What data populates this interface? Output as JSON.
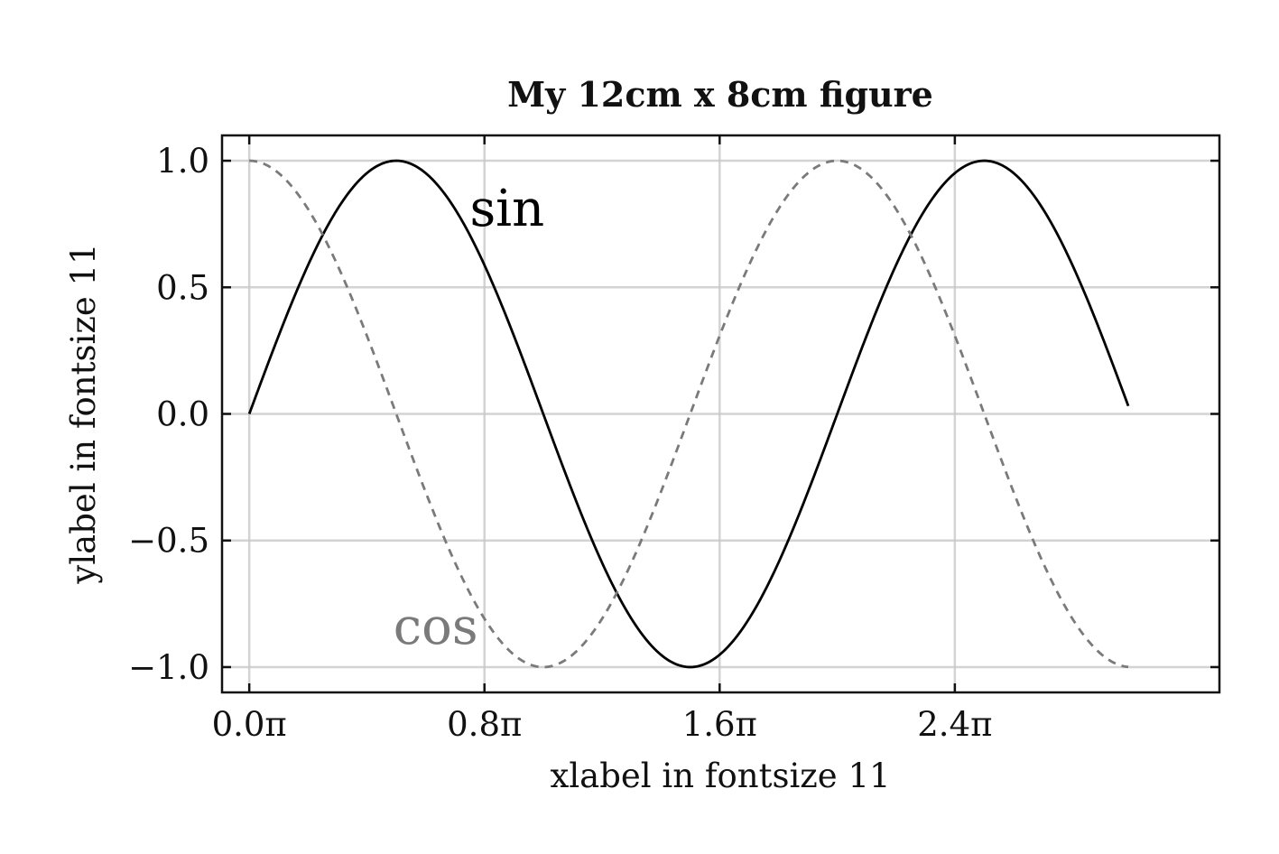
{
  "chart_data": {
    "type": "line",
    "title": "My 12cm x 8cm figure",
    "xlabel": "xlabel in fontsize 11",
    "ylabel": "ylabel in fontsize 11",
    "xlim": [
      -0.0926,
      3.3
    ],
    "ylim": [
      -1.1,
      1.1
    ],
    "x_unit": "π",
    "x_ticks": [
      0.0,
      0.8,
      1.6,
      2.4
    ],
    "x_tick_labels": [
      "0.0π",
      "0.8π",
      "1.6π",
      "2.4π"
    ],
    "y_ticks": [
      1.0,
      0.5,
      0.0,
      -0.5,
      -1.0
    ],
    "y_tick_labels": [
      "1.0",
      "0.5",
      "0.0",
      "−0.5",
      "−1.0"
    ],
    "grid": true,
    "x_range": [
      0,
      2.99
    ],
    "series": [
      {
        "name": "sin",
        "function": "sin",
        "color": "#000000",
        "linestyle": "solid"
      },
      {
        "name": "cos",
        "function": "cos",
        "color": "#7a7a7a",
        "linestyle": "dashed"
      }
    ],
    "annotations": [
      {
        "text": "sin",
        "x": 0.75,
        "y": 0.8,
        "color": "#000000"
      },
      {
        "text": "cos",
        "x": 0.49,
        "y": -0.85,
        "color": "#7a7a7a"
      }
    ]
  }
}
